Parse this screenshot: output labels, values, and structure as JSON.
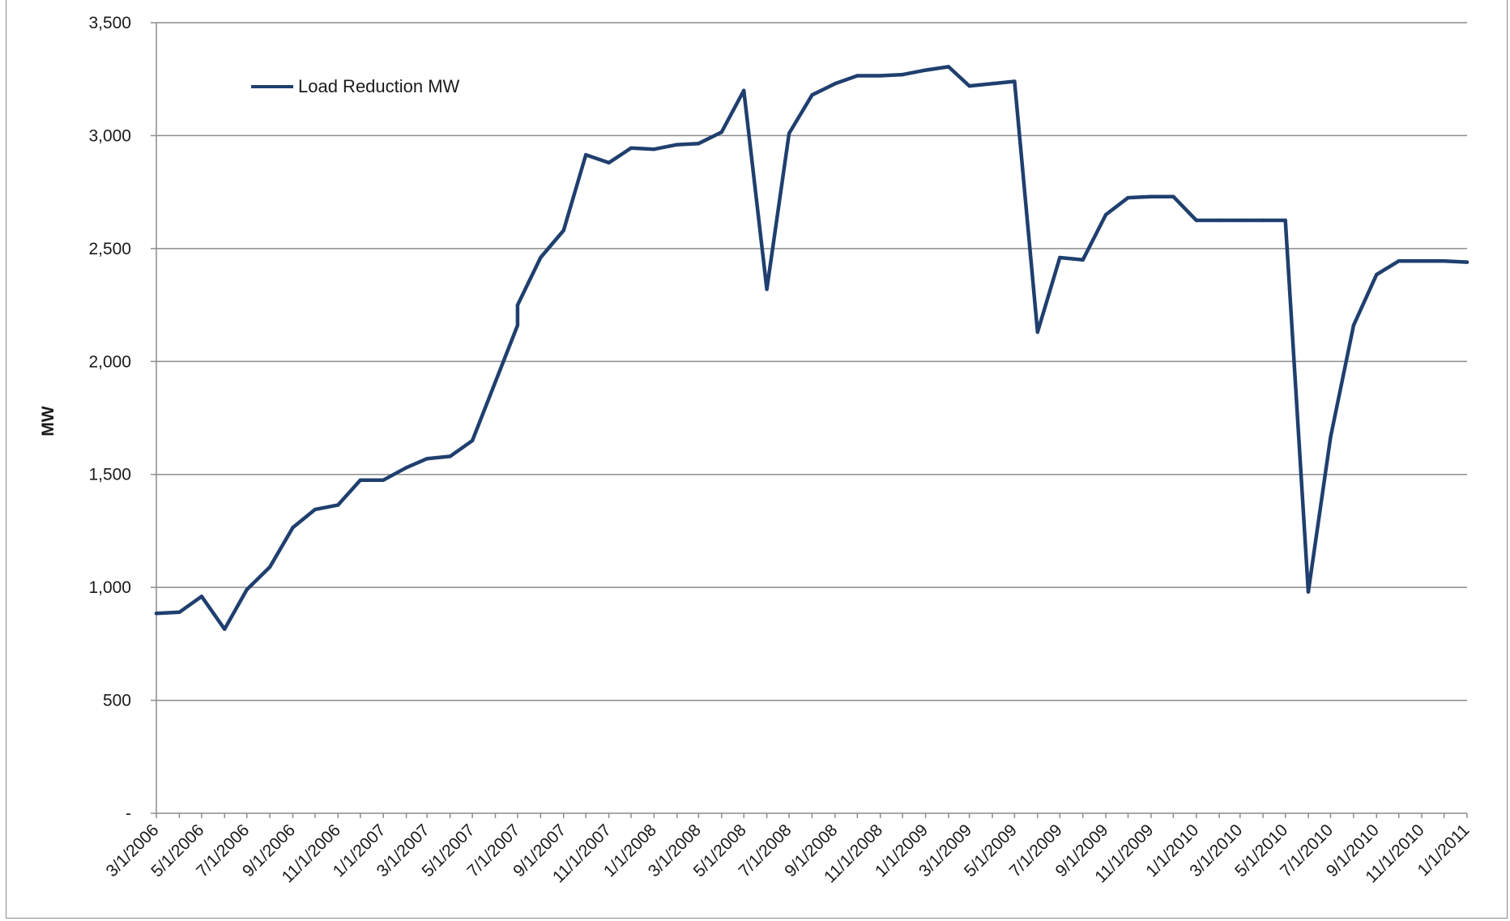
{
  "chart_data": {
    "type": "line",
    "title": "",
    "xlabel": "",
    "ylabel": "MW",
    "ylim": [
      0,
      3500
    ],
    "yticks": [
      0,
      500,
      1000,
      1500,
      2000,
      2500,
      3000,
      3500
    ],
    "ytick_labels": [
      "-",
      "500",
      "1,000",
      "1,500",
      "2,000",
      "2,500",
      "3,000",
      "3,500"
    ],
    "xlim": [
      "2006-03-01",
      "2011-01-01"
    ],
    "xtick_labels": [
      "3/1/2006",
      "5/1/2006",
      "7/1/2006",
      "9/1/2006",
      "11/1/2006",
      "1/1/2007",
      "3/1/2007",
      "5/1/2007",
      "7/1/2007",
      "9/1/2007",
      "11/1/2007",
      "1/1/2008",
      "3/1/2008",
      "5/1/2008",
      "7/1/2008",
      "9/1/2008",
      "11/1/2008",
      "1/1/2009",
      "3/1/2009",
      "5/1/2009",
      "7/1/2009",
      "9/1/2009",
      "11/1/2009",
      "1/1/2010",
      "3/1/2010",
      "5/1/2010",
      "7/1/2010",
      "9/1/2010",
      "11/1/2010",
      "1/1/2011"
    ],
    "grid": true,
    "legend": "top-left",
    "color": "#1f3f6e",
    "series": [
      {
        "name": "Load Reduction MW",
        "x": [
          "2006-03-01",
          "2006-04-01",
          "2006-05-01",
          "2006-06-01",
          "2006-07-01",
          "2006-08-01",
          "2006-09-01",
          "2006-10-01",
          "2006-11-01",
          "2006-12-01",
          "2007-01-01",
          "2007-02-01",
          "2007-03-01",
          "2007-04-01",
          "2007-05-01",
          "2007-07-01",
          "2007-07-01",
          "2007-08-01",
          "2007-09-01",
          "2007-10-01",
          "2007-11-01",
          "2007-12-01",
          "2008-01-01",
          "2008-02-01",
          "2008-03-01",
          "2008-04-01",
          "2008-05-01",
          "2008-06-01",
          "2008-07-01",
          "2008-08-01",
          "2008-09-01",
          "2008-10-01",
          "2008-11-01",
          "2008-12-01",
          "2009-01-01",
          "2009-02-01",
          "2009-03-01",
          "2009-04-01",
          "2009-05-01",
          "2009-06-01",
          "2009-07-01",
          "2009-08-01",
          "2009-09-01",
          "2009-10-01",
          "2009-11-01",
          "2009-12-01",
          "2010-01-01",
          "2010-02-01",
          "2010-03-01",
          "2010-04-01",
          "2010-05-01",
          "2010-06-01",
          "2010-07-01",
          "2010-08-01",
          "2010-09-01",
          "2010-10-01",
          "2010-11-01",
          "2010-12-01",
          "2011-01-01"
        ],
        "y": [
          885,
          890,
          960,
          815,
          990,
          1090,
          1265,
          1345,
          1365,
          1475,
          1475,
          1530,
          1570,
          1580,
          1650,
          2160,
          2250,
          2460,
          2580,
          2915,
          2880,
          2945,
          2940,
          2960,
          2965,
          3015,
          3200,
          2320,
          3010,
          3180,
          3230,
          3265,
          3265,
          3270,
          3290,
          3305,
          3220,
          3230,
          3240,
          2130,
          2460,
          2450,
          2650,
          2725,
          2730,
          2730,
          2625,
          2625,
          2625,
          2625,
          2625,
          980,
          1665,
          2160,
          2385,
          2445,
          2445,
          2445,
          2440
        ]
      }
    ]
  }
}
